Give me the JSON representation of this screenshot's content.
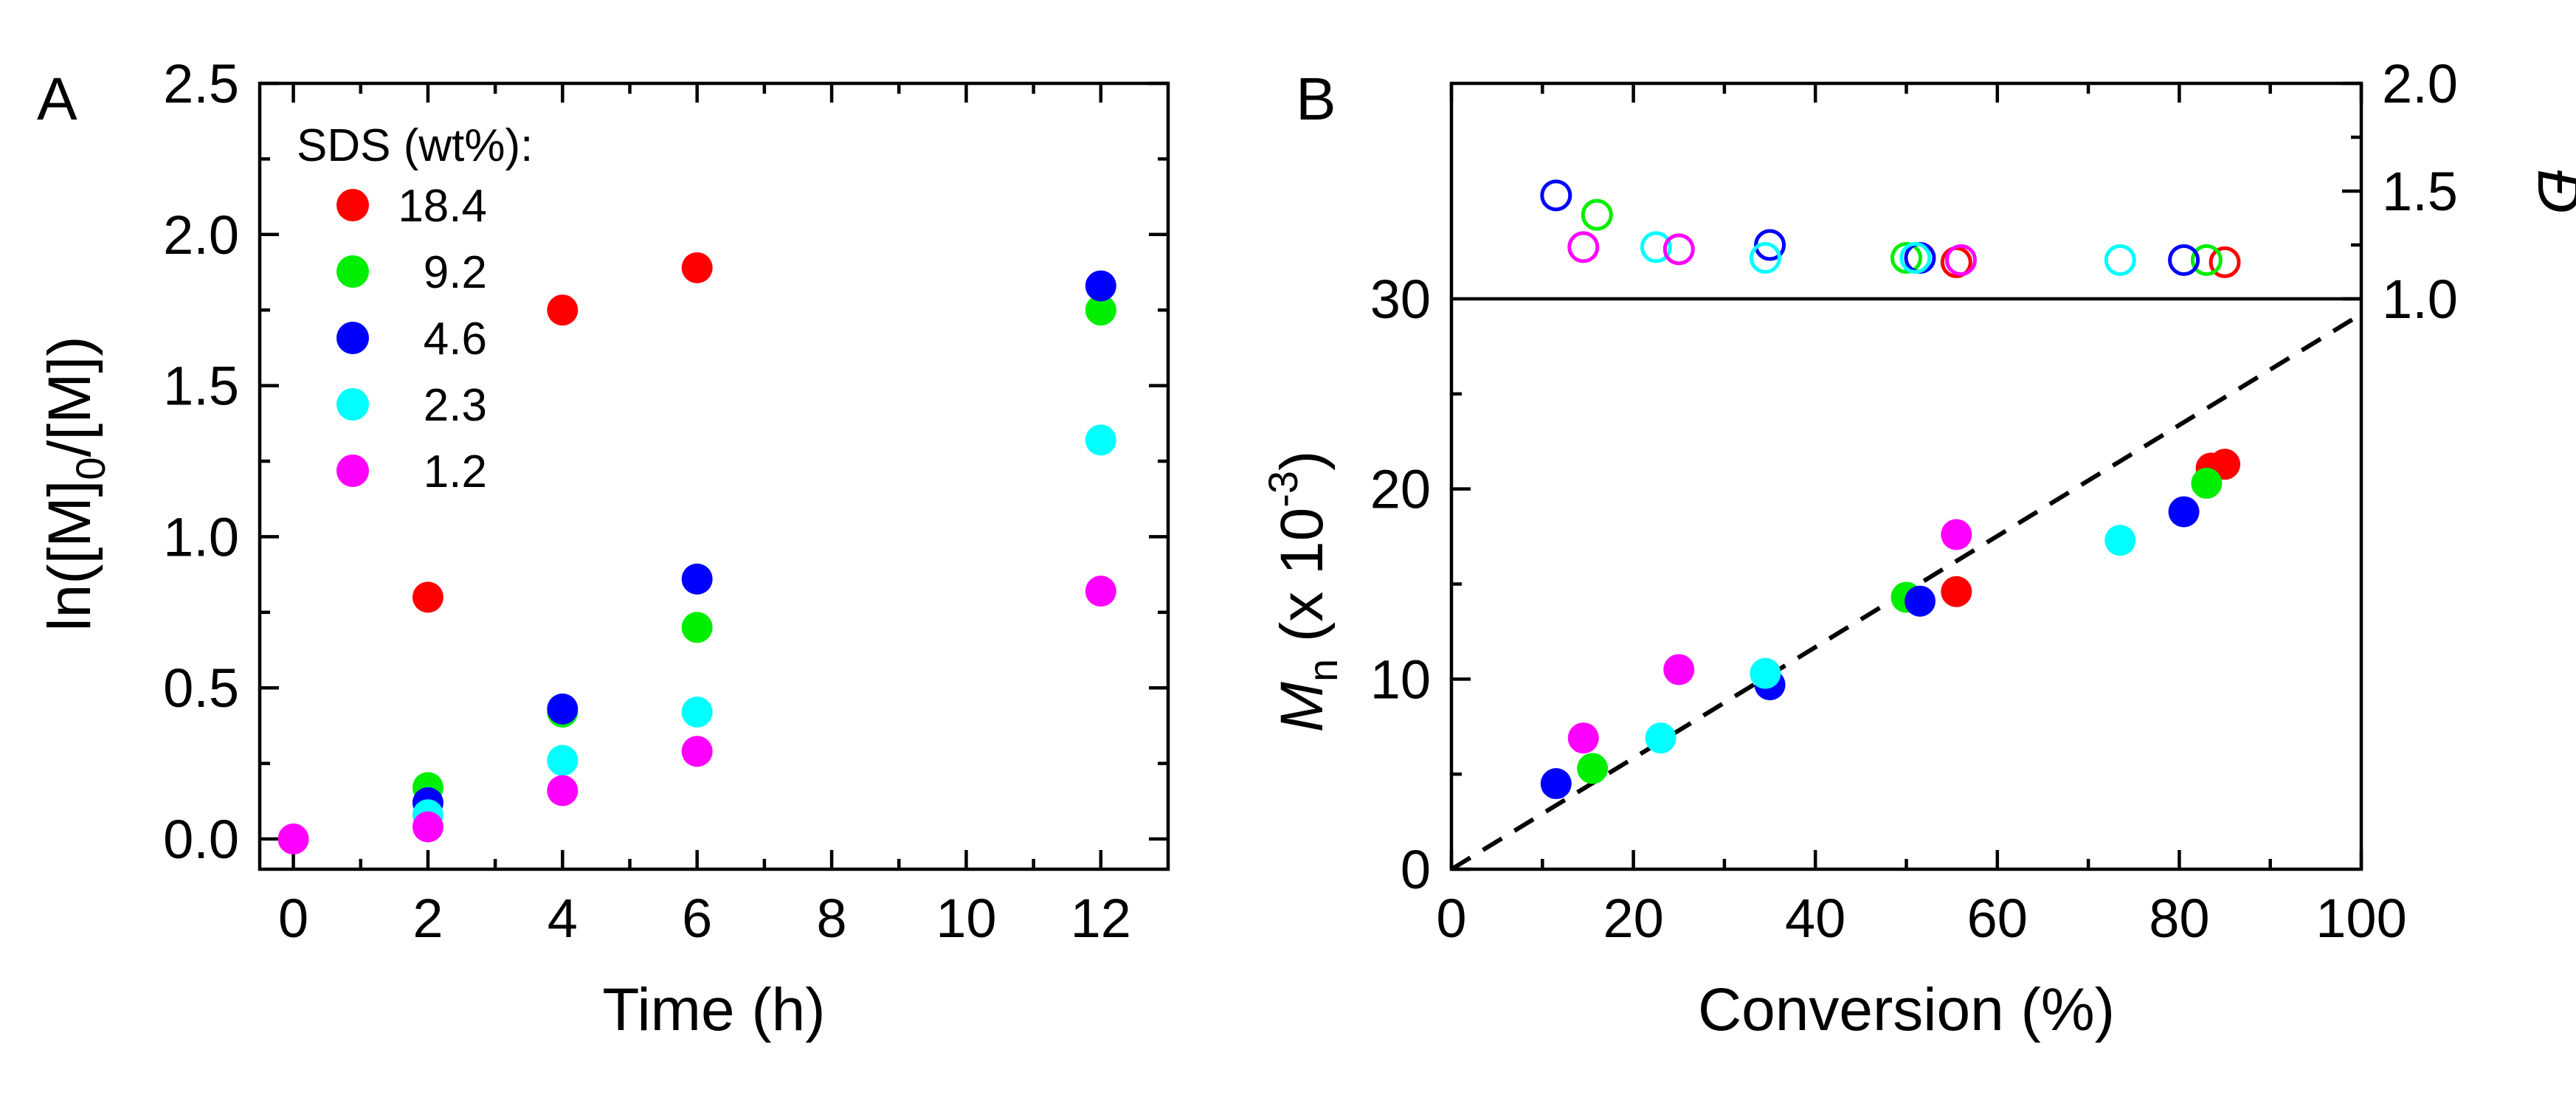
{
  "chart_data": [
    {
      "panel_label": "A",
      "type": "scatter",
      "xlabel": "Time (h)",
      "ylabel": {
        "pre": "ln([M]",
        "sub": "0",
        "post": "/[M])"
      },
      "x_ticks": [
        "0",
        "2",
        "4",
        "6",
        "8",
        "10",
        "12"
      ],
      "y_ticks": [
        "0.0",
        "0.5",
        "1.0",
        "1.5",
        "2.0",
        "2.5"
      ],
      "xlim": [
        -0.5,
        13
      ],
      "ylim": [
        -0.1,
        2.5
      ],
      "legend": {
        "title": "SDS (wt%):",
        "position": "top-left"
      },
      "series": [
        {
          "name": "18.4",
          "color": "#ff0000",
          "points": [
            [
              2,
              0.8
            ],
            [
              4,
              1.75
            ],
            [
              6,
              1.89
            ]
          ]
        },
        {
          "name": "9.2",
          "color": "#00ee00",
          "points": [
            [
              2,
              0.17
            ],
            [
              4,
              0.42
            ],
            [
              6,
              0.7
            ],
            [
              12,
              1.75
            ]
          ]
        },
        {
          "name": "4.6",
          "color": "#0000ff",
          "points": [
            [
              2,
              0.12
            ],
            [
              4,
              0.43
            ],
            [
              6,
              0.86
            ],
            [
              12,
              1.83
            ]
          ]
        },
        {
          "name": "2.3",
          "color": "#00ffff",
          "points": [
            [
              2,
              0.08
            ],
            [
              4,
              0.26
            ],
            [
              6,
              0.42
            ],
            [
              12,
              1.32
            ]
          ]
        },
        {
          "name": "1.2",
          "color": "#ff00ff",
          "points": [
            [
              0,
              0.0
            ],
            [
              2,
              0.04
            ],
            [
              4,
              0.16
            ],
            [
              6,
              0.29
            ],
            [
              12,
              0.82
            ]
          ]
        }
      ]
    },
    {
      "panel_label": "B",
      "type": "scatter",
      "xlabel": "Conversion (%)",
      "ylabel": {
        "italic": "M",
        "sub": "n",
        "mid": " (x 10",
        "sup": "-3",
        "post": ")"
      },
      "right_ylabel": "Đ",
      "x_ticks": [
        "0",
        "20",
        "40",
        "60",
        "80",
        "100"
      ],
      "y_ticks": [
        "0",
        "10",
        "20",
        "30"
      ],
      "right_y_ticks": [
        "1.0",
        "1.5",
        "2.0"
      ],
      "xlim": [
        0,
        100
      ],
      "ylim": [
        0,
        30
      ],
      "right_ylim": [
        1.0,
        2.0
      ],
      "fit_line": {
        "style": "dashed",
        "points": [
          [
            0,
            0
          ],
          [
            100,
            29.2
          ]
        ]
      },
      "series": [
        {
          "name": "18.4",
          "color": "#ff0000",
          "mn": [
            [
              55.5,
              14.6
            ],
            [
              83.5,
              21.1
            ],
            [
              85,
              21.3
            ]
          ],
          "dispersity": [
            [
              55.5,
              1.17
            ],
            [
              85,
              1.17
            ]
          ]
        },
        {
          "name": "9.2",
          "color": "#00ee00",
          "mn": [
            [
              15.5,
              5.3
            ],
            [
              50,
              14.3
            ],
            [
              83,
              20.3
            ]
          ],
          "dispersity": [
            [
              16,
              1.39
            ],
            [
              50,
              1.19
            ],
            [
              83,
              1.18
            ]
          ]
        },
        {
          "name": "4.6",
          "color": "#0000ff",
          "mn": [
            [
              11.5,
              4.5
            ],
            [
              35,
              9.7
            ],
            [
              51.5,
              14.1
            ],
            [
              80.5,
              18.8
            ]
          ],
          "dispersity": [
            [
              11.5,
              1.48
            ],
            [
              35,
              1.25
            ],
            [
              51.5,
              1.19
            ],
            [
              80.5,
              1.18
            ]
          ]
        },
        {
          "name": "2.3",
          "color": "#00ffff",
          "mn": [
            [
              23,
              6.9
            ],
            [
              34.5,
              10.3
            ],
            [
              73.5,
              17.3
            ]
          ],
          "dispersity": [
            [
              22.5,
              1.24
            ],
            [
              34.5,
              1.19
            ],
            [
              51,
              1.19
            ],
            [
              73.5,
              1.18
            ]
          ]
        },
        {
          "name": "1.2",
          "color": "#ff00ff",
          "mn": [
            [
              14.5,
              6.9
            ],
            [
              25,
              10.5
            ],
            [
              55.5,
              17.6
            ]
          ],
          "dispersity": [
            [
              14.5,
              1.24
            ],
            [
              25,
              1.23
            ],
            [
              56,
              1.18
            ]
          ]
        }
      ]
    }
  ]
}
